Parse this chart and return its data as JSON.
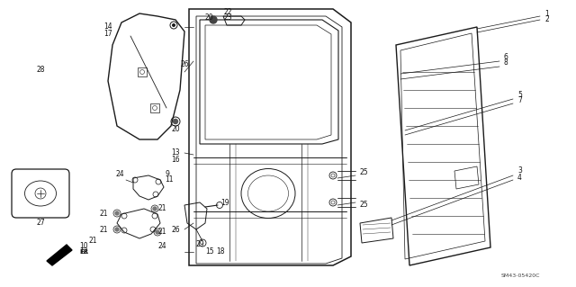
{
  "bg_color": "#ffffff",
  "line_color": "#1a1a1a",
  "diagram_code": "SM43-05420C",
  "fs": 5.5
}
